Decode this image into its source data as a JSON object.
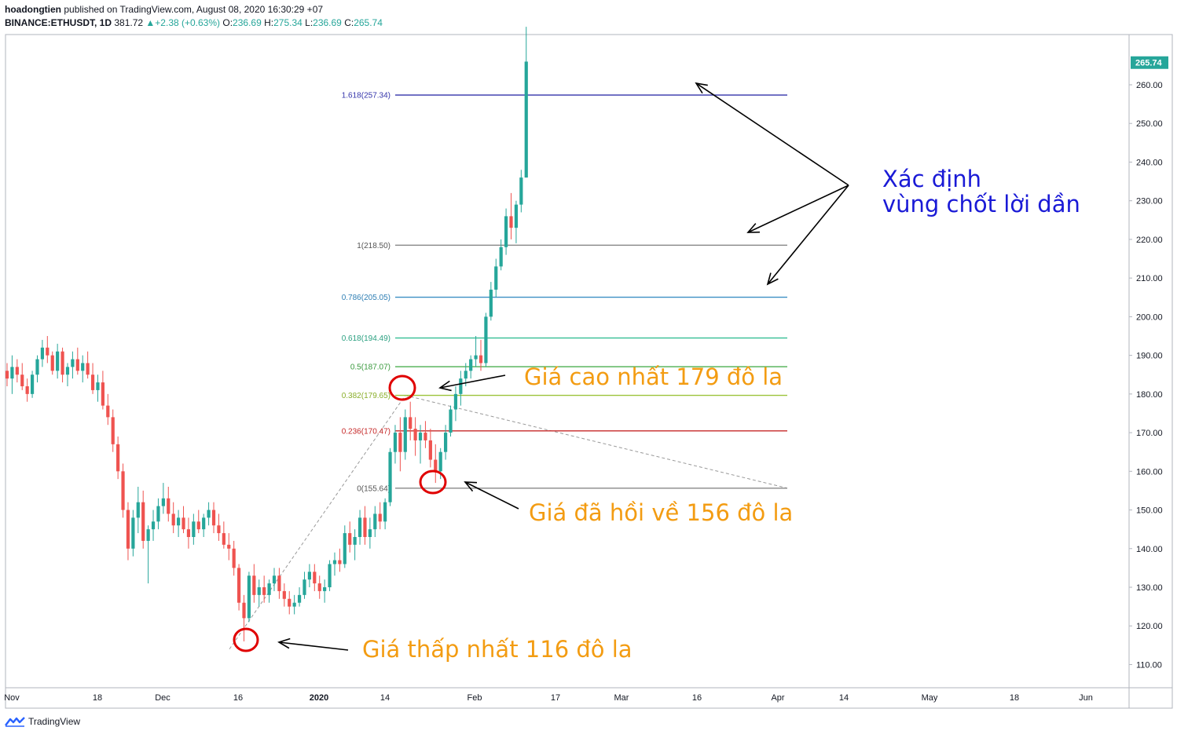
{
  "header": {
    "author": "hoadongtien",
    "published_text": "published on TradingView.com, August 08, 2020 16:30:29 +07",
    "symbol": "BINANCE:ETHUSDT, 1D",
    "last": "381.72",
    "change": "+2.38 (+0.63%)",
    "open_label": "O:",
    "open": "236.69",
    "high_label": "H:",
    "high": "275.34",
    "low_label": "L:",
    "low": "236.69",
    "close_label": "C:",
    "close": "265.74"
  },
  "footer": {
    "brand": "TradingView",
    "logo_icon": "tradingview-logo-icon"
  },
  "colors": {
    "up": "#26a69a",
    "down": "#ef5350",
    "price_badge": "#26a69a"
  },
  "chart_data": {
    "type": "candlestick",
    "y_range": [
      104,
      273
    ],
    "y_ticks": [
      110,
      120,
      130,
      140,
      150,
      160,
      170,
      180,
      190,
      200,
      210,
      220,
      230,
      240,
      250,
      260
    ],
    "y_tick_labels": [
      "110.00",
      "120.00",
      "130.00",
      "140.00",
      "150.00",
      "160.00",
      "170.00",
      "180.00",
      "190.00",
      "200.00",
      "210.00",
      "220.00",
      "230.00",
      "240.00",
      "250.00",
      "260.00"
    ],
    "last_price": 265.74,
    "last_price_label": "265.74",
    "x_tick_labels": [
      "Nov",
      "18",
      "Dec",
      "16",
      "2020",
      "14",
      "Feb",
      "17",
      "Mar",
      "16",
      "Apr",
      "14",
      "May",
      "18",
      "Jun"
    ],
    "x_tick_bold": [
      false,
      false,
      false,
      false,
      true,
      false,
      false,
      false,
      false,
      false,
      false,
      false,
      false,
      false,
      false
    ],
    "candles": [
      [
        186,
        188,
        182,
        184
      ],
      [
        184,
        190,
        180,
        187
      ],
      [
        187,
        189,
        183,
        185
      ],
      [
        185,
        188,
        181,
        182
      ],
      [
        182,
        184,
        178,
        180
      ],
      [
        180,
        186,
        179,
        185
      ],
      [
        185,
        190,
        183,
        189
      ],
      [
        189,
        194,
        187,
        192
      ],
      [
        192,
        195,
        188,
        190
      ],
      [
        190,
        191,
        185,
        186
      ],
      [
        186,
        193,
        184,
        191
      ],
      [
        191,
        192,
        183,
        185
      ],
      [
        185,
        188,
        182,
        187
      ],
      [
        187,
        191,
        184,
        189
      ],
      [
        189,
        192,
        185,
        186
      ],
      [
        186,
        190,
        183,
        188
      ],
      [
        188,
        191,
        184,
        185
      ],
      [
        185,
        188,
        180,
        181
      ],
      [
        181,
        185,
        178,
        183
      ],
      [
        183,
        186,
        176,
        177
      ],
      [
        177,
        180,
        172,
        174
      ],
      [
        174,
        176,
        165,
        167
      ],
      [
        167,
        169,
        158,
        160
      ],
      [
        160,
        162,
        148,
        150
      ],
      [
        150,
        152,
        137,
        140
      ],
      [
        140,
        150,
        138,
        148
      ],
      [
        148,
        156,
        144,
        152
      ],
      [
        152,
        155,
        140,
        142
      ],
      [
        142,
        146,
        131,
        145
      ],
      [
        145,
        150,
        142,
        147
      ],
      [
        147,
        153,
        145,
        151
      ],
      [
        151,
        157,
        149,
        153
      ],
      [
        153,
        156,
        147,
        149
      ],
      [
        149,
        152,
        144,
        146
      ],
      [
        146,
        150,
        143,
        148
      ],
      [
        148,
        151,
        144,
        145
      ],
      [
        145,
        148,
        140,
        143
      ],
      [
        143,
        149,
        141,
        147
      ],
      [
        147,
        150,
        144,
        145
      ],
      [
        145,
        149,
        143,
        148
      ],
      [
        148,
        152,
        146,
        150
      ],
      [
        150,
        152,
        144,
        146
      ],
      [
        146,
        149,
        142,
        144
      ],
      [
        144,
        147,
        140,
        141
      ],
      [
        141,
        144,
        137,
        140
      ],
      [
        140,
        142,
        133,
        135
      ],
      [
        135,
        136,
        124,
        126
      ],
      [
        126,
        128,
        116,
        122
      ],
      [
        122,
        134,
        121,
        133
      ],
      [
        133,
        136,
        126,
        128
      ],
      [
        128,
        132,
        125,
        130
      ],
      [
        130,
        133,
        126,
        128
      ],
      [
        128,
        132,
        126,
        131
      ],
      [
        131,
        135,
        129,
        133
      ],
      [
        133,
        135,
        127,
        129
      ],
      [
        129,
        131,
        125,
        127
      ],
      [
        127,
        129,
        123,
        125
      ],
      [
        125,
        128,
        123,
        126
      ],
      [
        126,
        130,
        125,
        128
      ],
      [
        128,
        134,
        127,
        132
      ],
      [
        132,
        136,
        130,
        134
      ],
      [
        134,
        136,
        129,
        131
      ],
      [
        131,
        133,
        127,
        129
      ],
      [
        129,
        132,
        126,
        130
      ],
      [
        130,
        137,
        129,
        136
      ],
      [
        136,
        139,
        133,
        137
      ],
      [
        137,
        140,
        134,
        136
      ],
      [
        136,
        146,
        135,
        144
      ],
      [
        144,
        147,
        139,
        141
      ],
      [
        141,
        145,
        137,
        143
      ],
      [
        143,
        150,
        141,
        148
      ],
      [
        148,
        151,
        141,
        143
      ],
      [
        143,
        148,
        140,
        145
      ],
      [
        145,
        151,
        143,
        149
      ],
      [
        149,
        152,
        145,
        147
      ],
      [
        147,
        153,
        145,
        152
      ],
      [
        152,
        166,
        151,
        165
      ],
      [
        165,
        172,
        162,
        170
      ],
      [
        170,
        174,
        160,
        165
      ],
      [
        165,
        176,
        163,
        174
      ],
      [
        174,
        178,
        168,
        171
      ],
      [
        171,
        174,
        164,
        168
      ],
      [
        168,
        172,
        162,
        170
      ],
      [
        170,
        173,
        166,
        168
      ],
      [
        168,
        171,
        161,
        163
      ],
      [
        163,
        167,
        157,
        160
      ],
      [
        160,
        166,
        158,
        165
      ],
      [
        165,
        172,
        163,
        170
      ],
      [
        170,
        177,
        169,
        176
      ],
      [
        176,
        182,
        173,
        180
      ],
      [
        180,
        186,
        177,
        184
      ],
      [
        184,
        188,
        182,
        186
      ],
      [
        186,
        190,
        184,
        189
      ],
      [
        189,
        195,
        187,
        190
      ],
      [
        190,
        194,
        186,
        188
      ],
      [
        188,
        201,
        187,
        200
      ],
      [
        200,
        209,
        199,
        207
      ],
      [
        207,
        215,
        205,
        213
      ],
      [
        213,
        220,
        212,
        218
      ],
      [
        218,
        228,
        216,
        226
      ],
      [
        226,
        232,
        220,
        223
      ],
      [
        223,
        230,
        219,
        229
      ],
      [
        229,
        238,
        227,
        236
      ],
      [
        236,
        275,
        236,
        266
      ]
    ],
    "fib_levels": [
      {
        "label": "1.618(257.34)",
        "value": 257.34,
        "color": "#3333aa",
        "text_color": "#3333aa"
      },
      {
        "label": "1(218.50)",
        "value": 218.5,
        "color": "#888888",
        "text_color": "#555555"
      },
      {
        "label": "0.786(205.05)",
        "value": 205.05,
        "color": "#3b8fc4",
        "text_color": "#2f7fb4"
      },
      {
        "label": "0.618(194.49)",
        "value": 194.49,
        "color": "#40c19a",
        "text_color": "#2aa080"
      },
      {
        "label": "0.5(187.07)",
        "value": 187.07,
        "color": "#4caf50",
        "text_color": "#3a9a3e"
      },
      {
        "label": "0.382(179.65)",
        "value": 179.65,
        "color": "#9cc43a",
        "text_color": "#8aae2a"
      },
      {
        "label": "0.236(170.47)",
        "value": 170.47,
        "color": "#c62828",
        "text_color": "#c62828"
      },
      {
        "label": "0(155.64)",
        "value": 155.64,
        "color": "#888888",
        "text_color": "#555555"
      }
    ],
    "annotations": {
      "take_profit_line1": "Xác định",
      "take_profit_line2": "vùng chốt lời dần",
      "high_note": "Giá cao nhất 179 đô la",
      "pullback_note": "Giá đã hồi về 156 đô la",
      "low_note": "Giá thấp nhất 116 đô la"
    }
  }
}
